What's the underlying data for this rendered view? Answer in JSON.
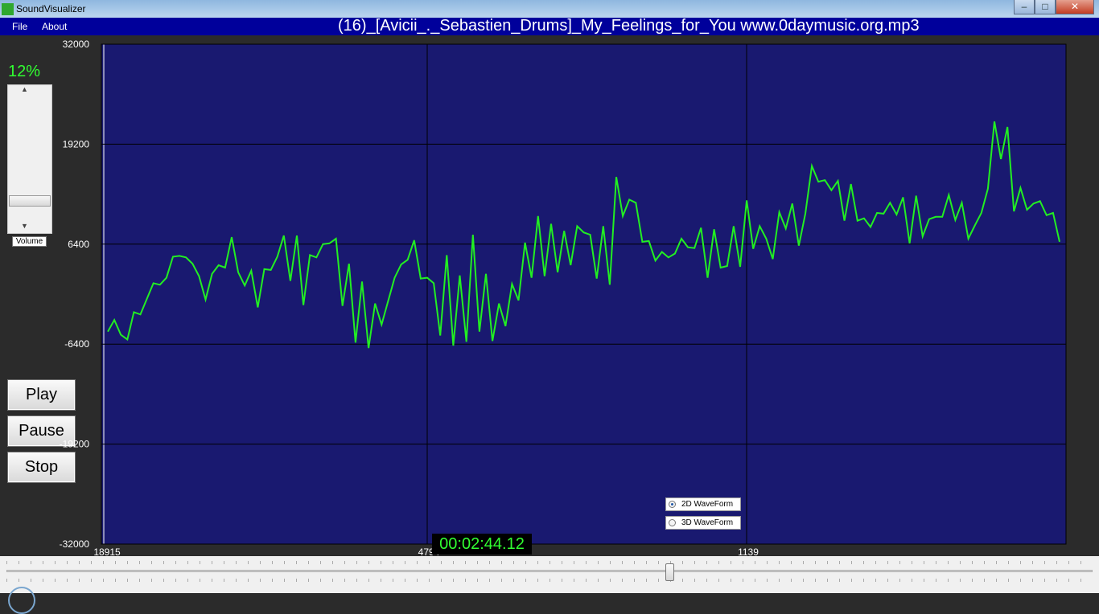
{
  "window": {
    "title": "SoundVisualizer",
    "minimize": "–",
    "maximize": "□",
    "close": "✕"
  },
  "menu": [
    "File",
    "About"
  ],
  "song_title": "(16)_[Avicii_._Sebastien_Drums]_My_Feelings_for_You www.0daymusic.org.mp3",
  "volume": {
    "percent_label": "12%",
    "label": "Volume",
    "level": 0.12,
    "up_arrow": "▲",
    "down_arrow": "▼"
  },
  "controls": {
    "play": "Play",
    "pause": "Pause",
    "stop": "Stop"
  },
  "time": "00:02:44.12",
  "waveform_options": [
    {
      "label": "2D WaveForm",
      "selected": true
    },
    {
      "label": "3D WaveForm",
      "selected": false
    }
  ],
  "seek": {
    "position": 0.61
  },
  "colors": {
    "plot_background": "#191970",
    "waveform": "#22ee22",
    "accent_text": "#31ff31",
    "menubar": "#00009b"
  },
  "chart_data": {
    "type": "line",
    "ylim": [
      -32000,
      32000
    ],
    "yticks": [
      "32000",
      "19200",
      "6400",
      "-6400",
      "-19200",
      "-32000"
    ],
    "xticks": [
      "18915",
      "4794",
      "1139"
    ],
    "grid": true,
    "series": [
      {
        "values": [
          -4800,
          -3300,
          -5200,
          -5800,
          -2300,
          -2600,
          -600,
          1400,
          1200,
          2100,
          4800,
          4900,
          4700,
          3900,
          2300,
          -700,
          2600,
          3700,
          3400,
          7300,
          2800,
          1100,
          3000,
          -1700,
          3200,
          3100,
          4800,
          7500,
          1700,
          7500,
          -1400,
          5000,
          4700,
          6400,
          6500,
          7100,
          -1500,
          3900,
          -6200,
          1600,
          -6900,
          -1200,
          -3900,
          -900,
          2100,
          3800,
          4400,
          6900,
          2000,
          2100,
          1400,
          -5300,
          5000,
          -6600,
          2400,
          -6100,
          7600,
          -4800,
          2600,
          -6000,
          -1200,
          -4100,
          1300,
          -800,
          6600,
          2100,
          10000,
          2300,
          9000,
          2800,
          8100,
          3700,
          8700,
          7900,
          7600,
          2000,
          8700,
          1200,
          15000,
          10000,
          12100,
          11700,
          6700,
          6800,
          4300,
          5400,
          4700,
          5200,
          7100,
          6000,
          5900,
          8500,
          2100,
          8300,
          3400,
          3600,
          8700,
          3500,
          12000,
          5800,
          8700,
          7100,
          4500,
          10500,
          8400,
          11600,
          6200,
          10300,
          16400,
          14400,
          14600,
          13300,
          14500,
          9400,
          14100,
          9400,
          9700,
          8600,
          10400,
          10300,
          11700,
          10200,
          12400,
          6500,
          12600,
          7400,
          9600,
          9900,
          9900,
          12700,
          9500,
          11700,
          7100,
          8800,
          10400,
          13500,
          22100,
          17300,
          21400,
          10600,
          13600,
          10800,
          11600,
          11900,
          10100,
          10400,
          6700
        ]
      }
    ]
  }
}
